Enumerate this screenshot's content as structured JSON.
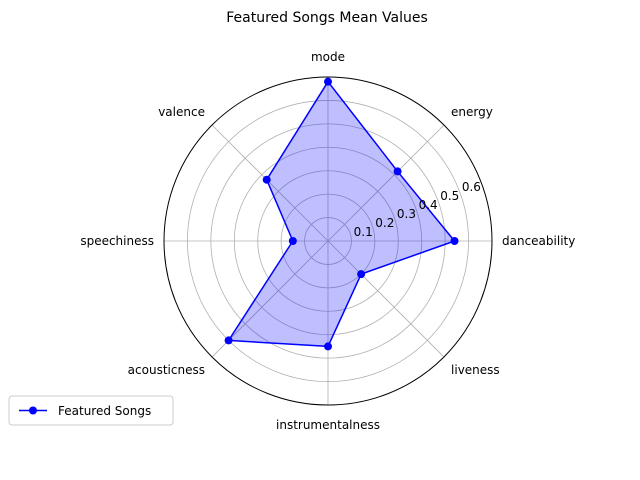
{
  "chart_data": {
    "type": "radar",
    "title": "Featured Songs Mean Values",
    "categories": [
      "danceability",
      "energy",
      "mode",
      "valence",
      "speechiness",
      "acousticness",
      "instrumentalness",
      "liveness"
    ],
    "series": [
      {
        "name": "Featured Songs",
        "values": [
          0.54,
          0.42,
          0.68,
          0.37,
          0.15,
          0.6,
          0.45,
          0.2
        ]
      }
    ],
    "r_ticks": [
      "0.1",
      "0.2",
      "0.3",
      "0.4",
      "0.5",
      "0.6"
    ],
    "r_tick_values": [
      0.1,
      0.2,
      0.3,
      0.4,
      0.5,
      0.6
    ],
    "rlim": [
      0,
      0.7
    ],
    "grid": true,
    "legend_position": "lower-left",
    "colors": {
      "line": "#0000ff",
      "fill": "#0000ff",
      "grid": "#b0b0b0",
      "spine": "#000000"
    }
  }
}
